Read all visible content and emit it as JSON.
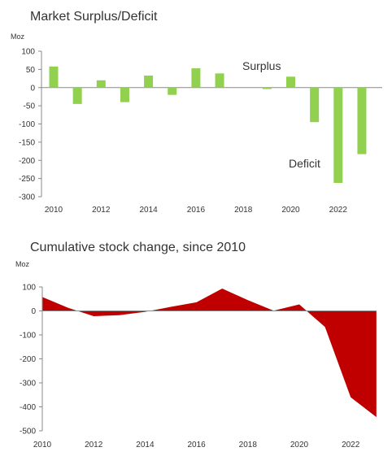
{
  "chart_data": [
    {
      "type": "bar",
      "title": "Market Surplus/Deficit",
      "ylabel": "Moz",
      "ylim": [
        -300,
        100
      ],
      "yticks": [
        100,
        50,
        0,
        -50,
        -100,
        -150,
        -200,
        -250,
        -300
      ],
      "categories": [
        2010,
        2011,
        2012,
        2013,
        2014,
        2015,
        2016,
        2017,
        2018,
        2019,
        2020,
        2021,
        2022,
        2023
      ],
      "x_tick_labels": [
        "2010",
        "2012",
        "2014",
        "2016",
        "2018",
        "2020",
        "2022"
      ],
      "values": [
        58,
        -45,
        20,
        -40,
        33,
        -20,
        53,
        39,
        0,
        -4,
        30,
        -95,
        -262,
        -183
      ],
      "bar_color": "#92d050",
      "annotations": [
        {
          "text": "Surplus"
        },
        {
          "text": "Deficit"
        }
      ],
      "grid": false
    },
    {
      "type": "area",
      "title": "Cumulative stock change, since 2010",
      "ylabel": "Moz",
      "ylim": [
        -500,
        100
      ],
      "yticks": [
        100,
        0,
        -100,
        -200,
        -300,
        -400,
        -500
      ],
      "x": [
        2010,
        2011,
        2012,
        2013,
        2014,
        2015,
        2016,
        2017,
        2018,
        2019,
        2020,
        2021,
        2022,
        2023
      ],
      "x_tick_labels": [
        "2010",
        "2012",
        "2014",
        "2016",
        "2018",
        "2020",
        "2022"
      ],
      "values": [
        58,
        13,
        -22,
        -18,
        -4,
        17,
        36,
        93,
        45,
        1,
        27,
        -67,
        -360,
        -443
      ],
      "fill_color": "#c00000",
      "grid": false
    }
  ]
}
